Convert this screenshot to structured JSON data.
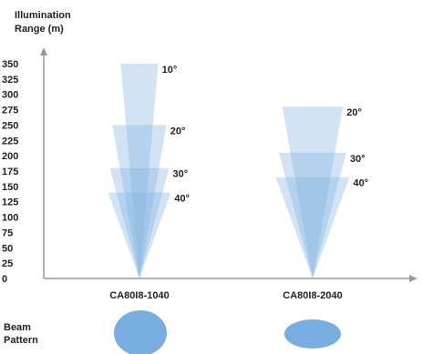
{
  "chart_data": {
    "type": "area",
    "ylabel": "Illumination\nRange (m)",
    "ylim": [
      0,
      350
    ],
    "y_ticks": [
      0,
      25,
      50,
      75,
      100,
      125,
      150,
      175,
      200,
      225,
      250,
      275,
      300,
      325,
      350
    ],
    "categories": [
      "CA80I8-1040",
      "CA80I8-2040"
    ],
    "series": [
      {
        "category": "CA80I8-1040",
        "beams": [
          {
            "label": "10°",
            "angle": 10,
            "range": 350
          },
          {
            "label": "20°",
            "angle": 20,
            "range": 250
          },
          {
            "label": "30°",
            "angle": 30,
            "range": 180
          },
          {
            "label": "40°",
            "angle": 40,
            "range": 140
          }
        ]
      },
      {
        "category": "CA80I8-2040",
        "beams": [
          {
            "label": "20°",
            "angle": 20,
            "range": 280
          },
          {
            "label": "30°",
            "angle": 30,
            "range": 205
          },
          {
            "label": "40°",
            "angle": 40,
            "range": 165
          }
        ]
      }
    ],
    "beam_pattern_label": "Beam\nPattern",
    "beam_patterns": [
      {
        "category": "CA80I8-1040",
        "shape": "circle"
      },
      {
        "category": "CA80I8-2040",
        "shape": "ellipse"
      }
    ],
    "colors": {
      "beam": "#7fb1e0",
      "pattern": "#78ade2",
      "axis": "#999999",
      "text": "#222222"
    }
  }
}
